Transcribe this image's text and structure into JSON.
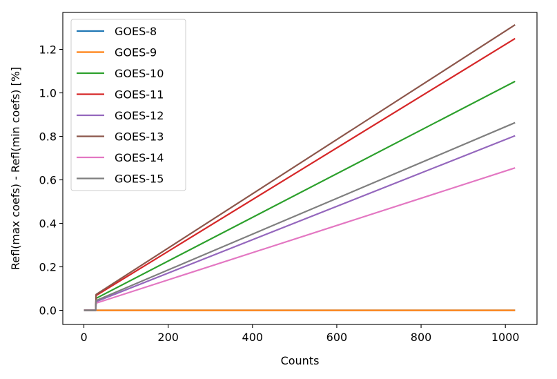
{
  "chart_data": {
    "type": "line",
    "title": "",
    "xlabel": "Counts",
    "ylabel": "Refl(max coefs) - Refl(min coefs) [%]",
    "xlim": [
      -50,
      1075
    ],
    "ylim": [
      -0.065,
      1.37
    ],
    "xticks": [
      0,
      200,
      400,
      600,
      800,
      1000
    ],
    "xtick_labels": [
      "0",
      "200",
      "400",
      "600",
      "800",
      "1000"
    ],
    "yticks": [
      0.0,
      0.2,
      0.4,
      0.6,
      0.8,
      1.0,
      1.2
    ],
    "ytick_labels": [
      "0.0",
      "0.2",
      "0.4",
      "0.6",
      "0.8",
      "1.0",
      "1.2"
    ],
    "grid": false,
    "legend_position": "top-left",
    "series": [
      {
        "name": "GOES-8",
        "color": "#1f77b4",
        "x": [
          0,
          1023
        ],
        "y": [
          0,
          0
        ]
      },
      {
        "name": "GOES-9",
        "color": "#ff7f0e",
        "x": [
          0,
          1023
        ],
        "y": [
          0,
          0
        ]
      },
      {
        "name": "GOES-10",
        "color": "#2ca02c",
        "x": [
          0,
          28,
          29,
          1023
        ],
        "y": [
          0,
          0,
          0.055,
          1.053
        ]
      },
      {
        "name": "GOES-11",
        "color": "#d62728",
        "x": [
          0,
          28,
          29,
          1023
        ],
        "y": [
          0,
          0,
          0.068,
          1.25
        ]
      },
      {
        "name": "GOES-12",
        "color": "#9467bd",
        "x": [
          0,
          28,
          29,
          1023
        ],
        "y": [
          0,
          0,
          0.04,
          0.803
        ]
      },
      {
        "name": "GOES-13",
        "color": "#8c564b",
        "x": [
          0,
          28,
          29,
          1023
        ],
        "y": [
          0,
          0,
          0.073,
          1.313
        ]
      },
      {
        "name": "GOES-14",
        "color": "#e377c2",
        "x": [
          0,
          28,
          29,
          1023
        ],
        "y": [
          0,
          0,
          0.033,
          0.655
        ]
      },
      {
        "name": "GOES-15",
        "color": "#7f7f7f",
        "x": [
          0,
          28,
          29,
          1023
        ],
        "y": [
          0,
          0,
          0.045,
          0.863
        ]
      }
    ]
  }
}
